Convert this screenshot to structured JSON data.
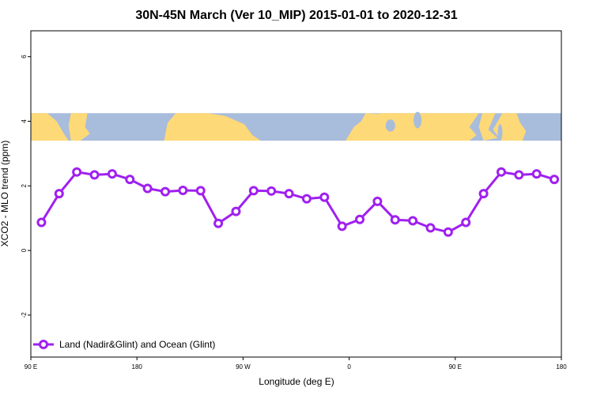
{
  "chart_data": {
    "type": "line",
    "title": "30N-45N March (Ver 10_MIP)   2015-01-01 to 2020-12-31",
    "xlabel": "Longitude (deg E)",
    "ylabel": "XCO2 - MLO trend (ppm)",
    "xlim": [
      90,
      540
    ],
    "ylim": [
      -3.3,
      6.8
    ],
    "x_ticks": [
      {
        "value": 90,
        "label": "90 E"
      },
      {
        "value": 180,
        "label": "180"
      },
      {
        "value": 270,
        "label": "90 W"
      },
      {
        "value": 360,
        "label": "0"
      },
      {
        "value": 450,
        "label": "90 E"
      },
      {
        "value": 540,
        "label": "180"
      }
    ],
    "y_ticks": [
      {
        "value": -2,
        "label": "-2"
      },
      {
        "value": 0,
        "label": "0"
      },
      {
        "value": 2,
        "label": "2"
      },
      {
        "value": 4,
        "label": "4"
      },
      {
        "value": 6,
        "label": "6"
      }
    ],
    "series": [
      {
        "name": "Land (Nadir&Glint) and Ocean (Glint)",
        "color": "#a020f0",
        "x": [
          99,
          114,
          129,
          144,
          159,
          174,
          189,
          204,
          219,
          234,
          249,
          264,
          279,
          294,
          309,
          324,
          339,
          354,
          369,
          384,
          399,
          414,
          429,
          444,
          459,
          474,
          489,
          504,
          519,
          534
        ],
        "y": [
          0.87,
          1.76,
          2.43,
          2.34,
          2.37,
          2.2,
          1.92,
          1.82,
          1.86,
          1.85,
          0.84,
          1.21,
          1.85,
          1.84,
          1.76,
          1.6,
          1.65,
          0.75,
          0.96,
          1.52,
          0.95,
          0.92,
          0.7,
          0.57,
          0.87,
          1.76,
          2.43,
          2.34,
          2.37,
          2.2
        ]
      }
    ],
    "map_strip": {
      "y_range": [
        3.4,
        4.25
      ],
      "ocean_color": "#a8bcdc",
      "land_color": "#fed977"
    },
    "grid": false,
    "legend": "bottom-left"
  }
}
